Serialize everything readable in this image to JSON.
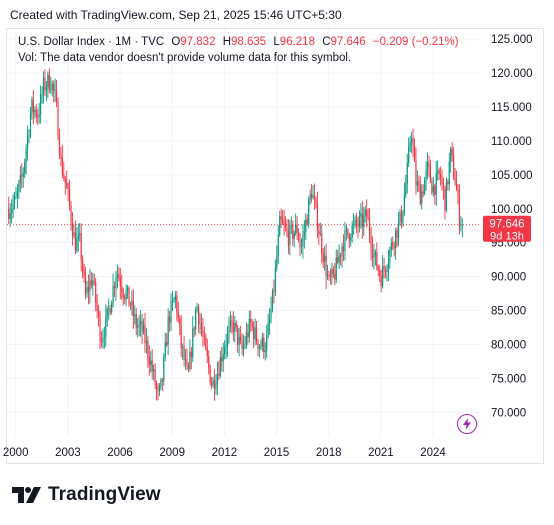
{
  "header": {
    "created": "Created with TradingView.com, Sep 21, 2025 15:46 UTC+5:30"
  },
  "legend": {
    "symbol": "U.S. Dollar Index · 1M · TVC",
    "open_label": "O",
    "open": "97.832",
    "high_label": "H",
    "high": "98.635",
    "low_label": "L",
    "low": "96.218",
    "close_label": "C",
    "close": "97.646",
    "change": "−0.209 (−0.21%)",
    "volume_note": "Vol: The data vendor doesn't provide volume data for this symbol."
  },
  "price_tag": {
    "price": "97.646",
    "countdown": "9d 13h"
  },
  "footer": {
    "brand": "TradingView"
  },
  "colors": {
    "up": "#089981",
    "down": "#f23645",
    "grid": "#f0f3fa",
    "text": "#131722",
    "accent": "#9c27b0"
  },
  "chart_data": {
    "type": "candlestick",
    "title": "U.S. Dollar Index · 1M · TVC",
    "interval": "1M",
    "y_ticks": [
      70,
      75,
      80,
      85,
      90,
      95,
      100,
      105,
      110,
      115,
      120,
      125
    ],
    "y_tick_labels": [
      "70.000",
      "75.000",
      "80.000",
      "85.000",
      "90.000",
      "95.000",
      "100.000",
      "105.000",
      "110.000",
      "115.000",
      "120.000",
      "125.000"
    ],
    "x_ticks": [
      2000,
      2003,
      2006,
      2009,
      2012,
      2015,
      2018,
      2021,
      2024
    ],
    "x_tick_labels": [
      "2000",
      "2003",
      "2006",
      "2009",
      "2012",
      "2015",
      "2018",
      "2021",
      "2024"
    ],
    "ylim": [
      66.5,
      126.5
    ],
    "xlim": [
      1999.5,
      2026.7
    ],
    "last_close": 97.646,
    "anchors": [
      [
        1999.6,
        100
      ],
      [
        2000.0,
        101
      ],
      [
        2000.4,
        105
      ],
      [
        2000.9,
        115
      ],
      [
        2001.3,
        114
      ],
      [
        2001.6,
        118
      ],
      [
        2002.0,
        119
      ],
      [
        2002.3,
        116
      ],
      [
        2002.6,
        107
      ],
      [
        2003.0,
        102
      ],
      [
        2003.4,
        95
      ],
      [
        2003.7,
        95
      ],
      [
        2004.0,
        87
      ],
      [
        2004.4,
        90
      ],
      [
        2004.9,
        81
      ],
      [
        2005.2,
        83
      ],
      [
        2005.8,
        91
      ],
      [
        2006.2,
        88
      ],
      [
        2006.6,
        86
      ],
      [
        2006.9,
        83
      ],
      [
        2007.3,
        82
      ],
      [
        2007.7,
        78
      ],
      [
        2008.2,
        72
      ],
      [
        2008.4,
        74
      ],
      [
        2008.8,
        84
      ],
      [
        2009.2,
        87
      ],
      [
        2009.5,
        80
      ],
      [
        2009.9,
        75
      ],
      [
        2010.4,
        86
      ],
      [
        2010.9,
        79
      ],
      [
        2011.3,
        74
      ],
      [
        2011.6,
        76
      ],
      [
        2012.0,
        80
      ],
      [
        2012.5,
        83
      ],
      [
        2013.0,
        79
      ],
      [
        2013.5,
        83
      ],
      [
        2014.0,
        80
      ],
      [
        2014.4,
        80
      ],
      [
        2014.8,
        87
      ],
      [
        2015.2,
        98
      ],
      [
        2015.7,
        96
      ],
      [
        2016.2,
        97
      ],
      [
        2016.4,
        94
      ],
      [
        2016.9,
        101
      ],
      [
        2017.0,
        103
      ],
      [
        2017.5,
        96
      ],
      [
        2018.0,
        89
      ],
      [
        2018.3,
        90
      ],
      [
        2018.8,
        95
      ],
      [
        2019.3,
        97
      ],
      [
        2019.9,
        98
      ],
      [
        2020.2,
        99
      ],
      [
        2020.6,
        93
      ],
      [
        2021.0,
        90
      ],
      [
        2021.3,
        92
      ],
      [
        2021.8,
        96
      ],
      [
        2022.2,
        99
      ],
      [
        2022.5,
        105
      ],
      [
        2022.75,
        112
      ],
      [
        2023.0,
        104
      ],
      [
        2023.3,
        102
      ],
      [
        2023.7,
        106
      ],
      [
        2024.0,
        103
      ],
      [
        2024.4,
        105
      ],
      [
        2024.7,
        101
      ],
      [
        2025.0,
        108
      ],
      [
        2025.3,
        104
      ],
      [
        2025.5,
        99
      ],
      [
        2025.72,
        97.6
      ]
    ],
    "grid": true,
    "legend_position": "top-left"
  }
}
